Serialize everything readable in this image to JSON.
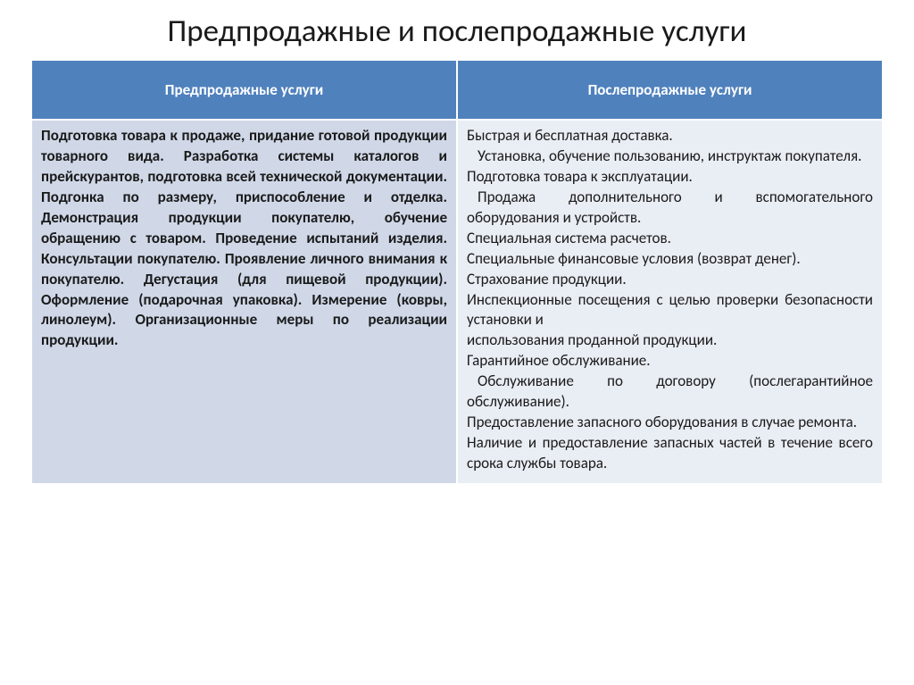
{
  "title": "Предпродажные и послепродажные услуги",
  "table": {
    "headers": [
      "Предпродажные услуги",
      "Послепродажные услуги"
    ],
    "left_cell": " Подготовка товара к продаже, придание готовой продукции товарного вида. Разработка системы каталогов и прейскурантов, подготовка всей технической документации. Подгонка по размеру, приспособление и отделка. Демонстрация продукции покупателю, обучение обращению с товаром. Проведение испытаний изделия. Консультации покупателю. Проявление личного внимания к покупателю. Дегустация (для пищевой продукции). Оформление (подарочная упаковка). Измерение (ковры, линолеум). Организационные меры по реализации продукции.",
    "right_lines": [
      " Быстрая и бесплатная доставка.",
      "Установка, обучение пользованию, инструктаж покупателя.",
      "Подготовка товара к эксплуатации.",
      "Продажа дополнительного и вспомогательного оборудования и устройств.",
      "Специальная система расчетов.",
      "Специальные финансовые условия (возврат денег).",
      "Страхование продукции.",
      "Инспекционные посещения с целью проверки безопасности установки и",
      "использования проданной продукции.",
      "Гарантийное обслуживание.",
      "Обслуживание по договору (послегарантийное обслуживание).",
      "Предоставление запасного оборудования в случае ремонта.",
      "Наличие и предоставление запасных частей в течение всего срока службы товара."
    ]
  },
  "styling": {
    "header_bg": "#4f81bd",
    "header_text": "#ffffff",
    "left_bg": "#d0d8e8",
    "right_bg": "#e9edf4",
    "title_fontsize": 35,
    "cell_fontsize": 17
  }
}
